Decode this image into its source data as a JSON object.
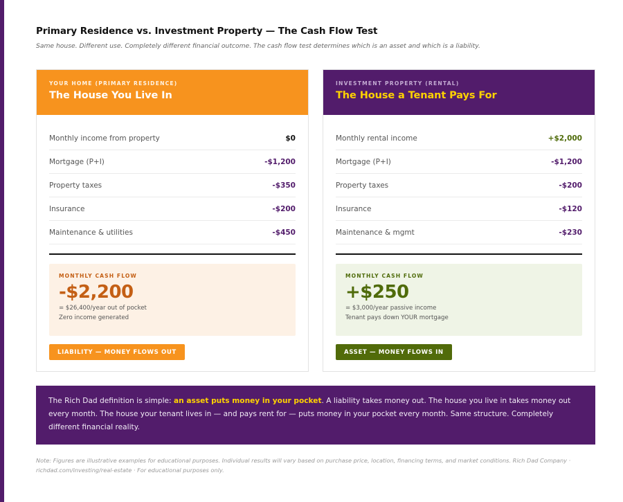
{
  "header": {
    "title": "Primary Residence vs. Investment Property — The Cash Flow Test",
    "subtitle": "Same house. Different use. Completely different financial outcome. The cash flow test determines which is an asset and which is a liability."
  },
  "cards": [
    {
      "eyebrow": "YOUR HOME (PRIMARY RESIDENCE)",
      "title": "The House You Live In",
      "rows": [
        {
          "label": "Monthly income from property",
          "value": "$0"
        },
        {
          "label": "Mortgage (P+I)",
          "value": "-$1,200"
        },
        {
          "label": "Property taxes",
          "value": "-$350"
        },
        {
          "label": "Insurance",
          "value": "-$200"
        },
        {
          "label": "Maintenance & utilities",
          "value": "-$450"
        }
      ],
      "cashflow": {
        "label": "MONTHLY CASH FLOW",
        "amount": "-$2,200",
        "note_1": "= $26,400/year out of pocket",
        "note_2": "Zero income generated"
      },
      "badge": "LIABILITY — MONEY FLOWS OUT"
    },
    {
      "eyebrow": "INVESTMENT PROPERTY (RENTAL)",
      "title": "The House a Tenant Pays For",
      "rows": [
        {
          "label": "Monthly rental income",
          "value": "+$2,000"
        },
        {
          "label": "Mortgage (P+I)",
          "value": "-$1,200"
        },
        {
          "label": "Property taxes",
          "value": "-$200"
        },
        {
          "label": "Insurance",
          "value": "-$120"
        },
        {
          "label": "Maintenance & mgmt",
          "value": "-$230"
        }
      ],
      "cashflow": {
        "label": "MONTHLY CASH FLOW",
        "amount": "+$250",
        "note_1": "= $3,000/year passive income",
        "note_2": "Tenant pays down YOUR mortgage"
      },
      "badge": "ASSET — MONEY FLOWS IN"
    }
  ],
  "definition": {
    "lead": "The Rich Dad definition is simple: ",
    "highlight": "an asset puts money in your pocket",
    "rest": ". A liability takes money out. The house you live in takes money out every month. The house your tenant lives in — and pays rent for — puts money in your pocket every month. Same structure. Completely different financial reality."
  },
  "footnote": "Note: Figures are illustrative examples for educational purposes. Individual results will vary based on purchase price, location, financing terms, and market conditions. Rich Dad Company · richdad.com/investing/real-estate · For educational purposes only.",
  "colors": {
    "purple": "#521c6b",
    "orange": "#f7931e",
    "yellow": "#ffd200",
    "green": "#4f6b0a",
    "liability_text": "#c45f14"
  }
}
